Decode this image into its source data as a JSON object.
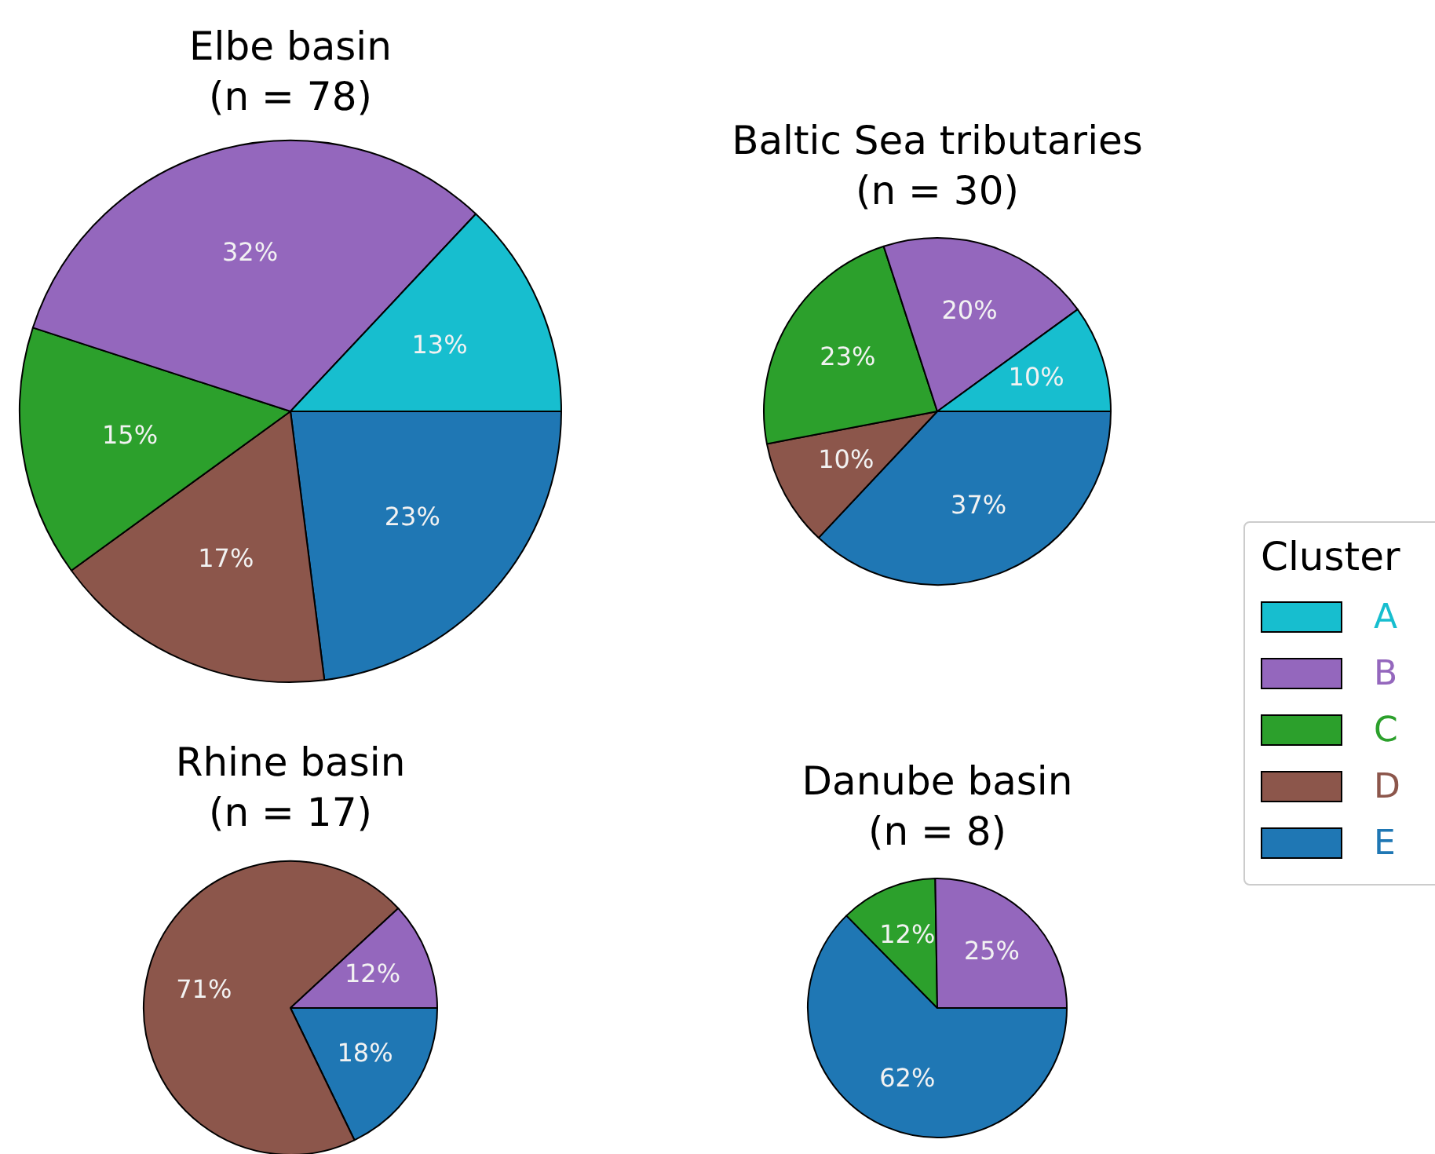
{
  "chart_data": [
    {
      "type": "pie",
      "title": "Elbe basin\n(n = 78)",
      "categories": [
        "A",
        "B",
        "C",
        "D",
        "E"
      ],
      "values": [
        13,
        32,
        15,
        17,
        23
      ],
      "value_labels": [
        "13%",
        "32%",
        "15%",
        "17%",
        "23%"
      ],
      "colors": [
        "#17becf",
        "#9467bd",
        "#2ca02c",
        "#8c564b",
        "#1f77b4"
      ],
      "legend": "right",
      "legend_title": "Cluster"
    },
    {
      "type": "pie",
      "title": "Baltic Sea tributaries\n(n = 30)",
      "categories": [
        null,
        null,
        null,
        null,
        null
      ],
      "values": [
        10,
        20,
        23,
        10,
        37
      ],
      "value_labels": [
        "10%",
        "20%",
        "23%",
        "10%",
        "37%"
      ],
      "colors": [
        "#17becf",
        "#9467bd",
        "#2ca02c",
        "#8c564b",
        "#1f77b4"
      ]
    },
    {
      "type": "pie",
      "title": "Rhine basin\n(n = 17)",
      "categories": [
        null,
        null,
        null
      ],
      "values": [
        12,
        71,
        18
      ],
      "value_labels": [
        "12%",
        "71%",
        "18%"
      ],
      "colors": [
        "#9467bd",
        "#8c564b",
        "#1f77b4"
      ]
    },
    {
      "type": "pie",
      "title": "Danube basin\n(n = 8)",
      "categories": [
        null,
        null,
        null
      ],
      "values": [
        25,
        12,
        62
      ],
      "value_labels": [
        "25%",
        "12%",
        "62%"
      ],
      "colors": [
        "#9467bd",
        "#2ca02c",
        "#1f77b4"
      ]
    }
  ]
}
